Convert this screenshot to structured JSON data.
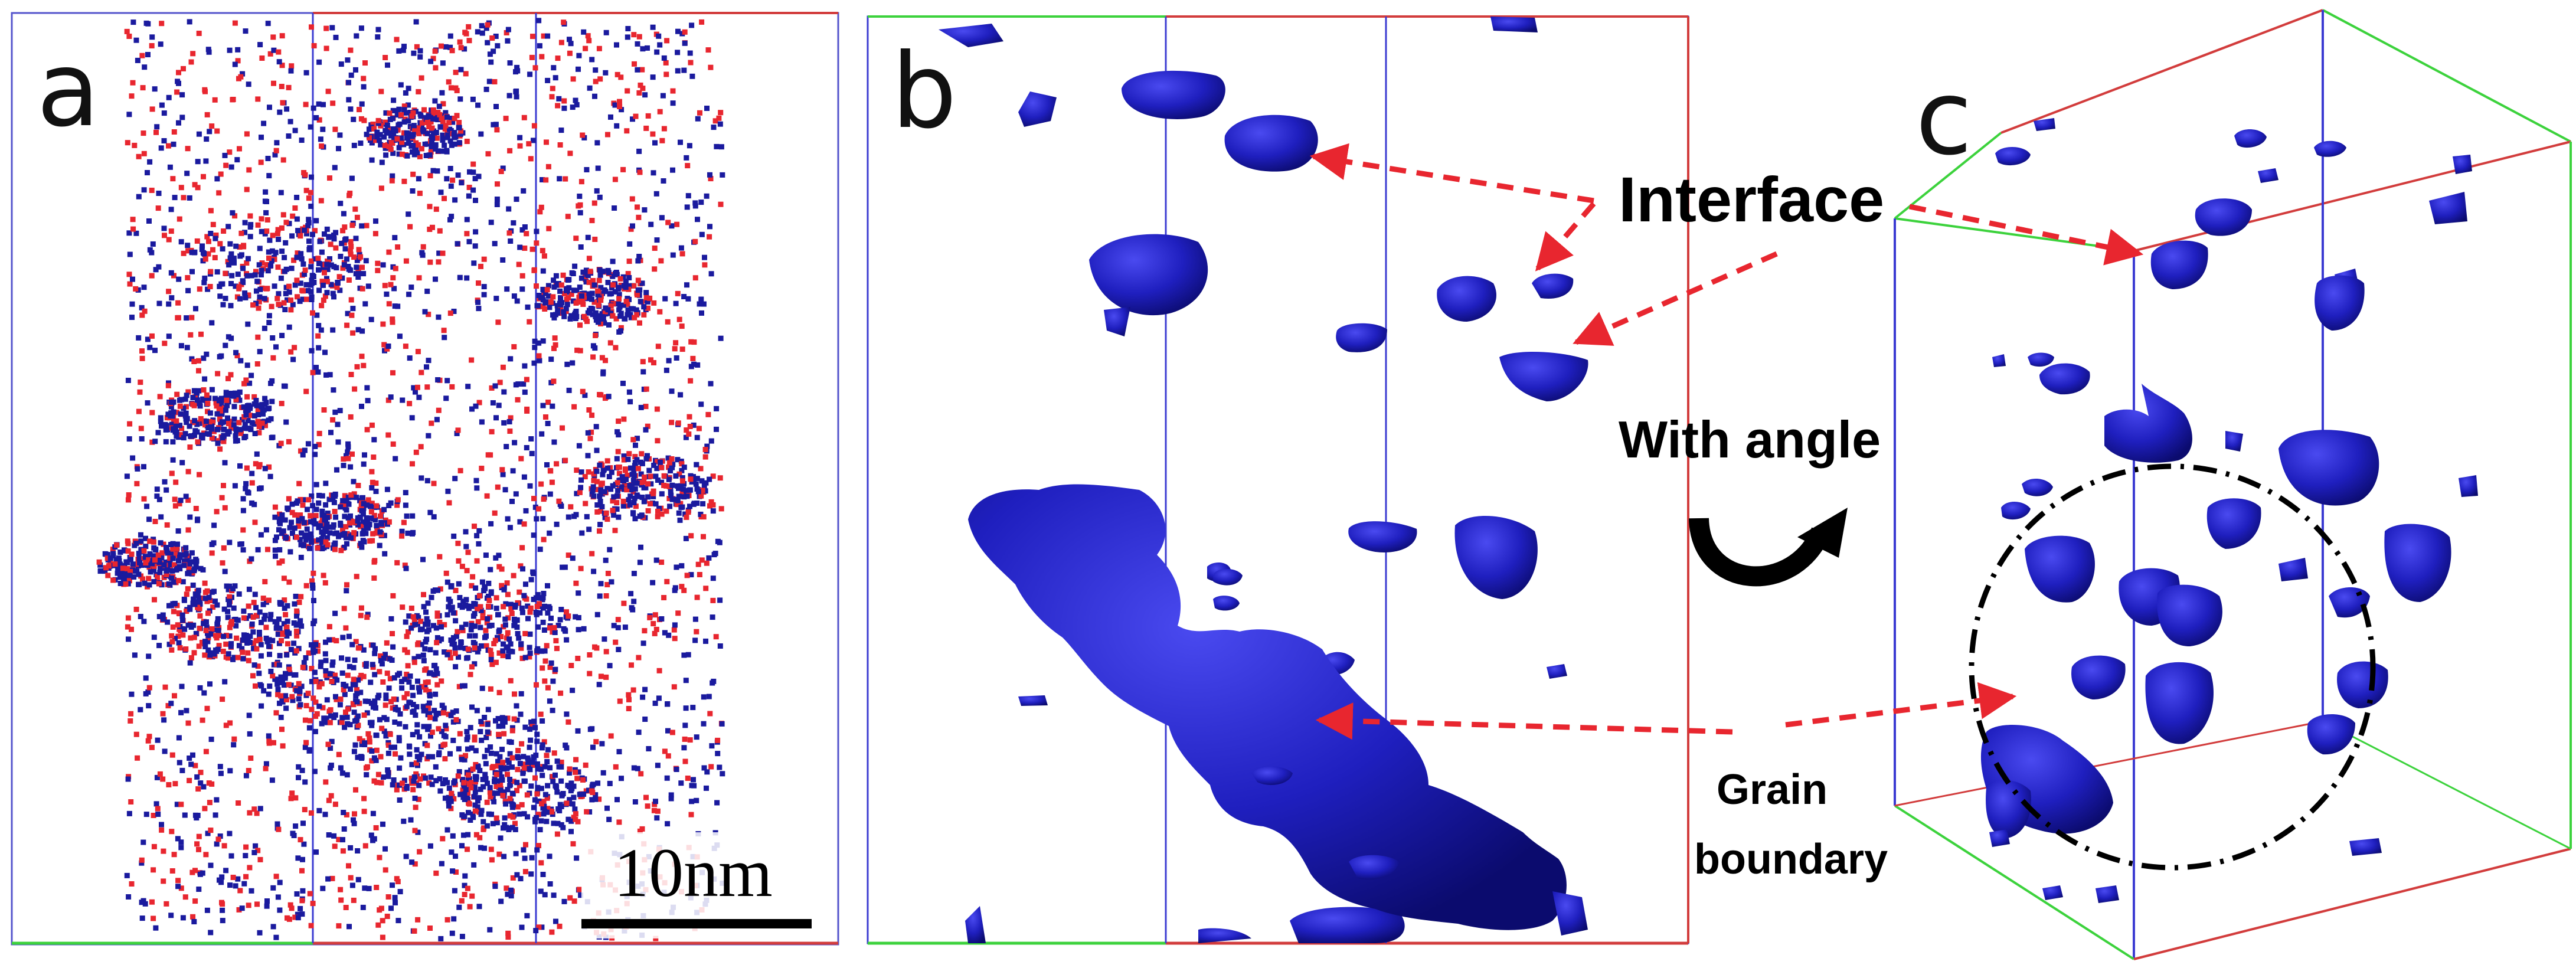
{
  "figure": {
    "panels": [
      {
        "letter": "a",
        "scale_bar_label": "10nm"
      },
      {
        "letter": "b"
      },
      {
        "letter": "c"
      }
    ],
    "annotations": {
      "interface": "Interface",
      "with_angle": "With angle",
      "grain_boundary_line1": "Grain",
      "grain_boundary_line2": "boundary"
    },
    "colors": {
      "atom_blue": "#1a1a9e",
      "atom_red": "#e8262f",
      "iso_surface": "#1f1fbf",
      "arrow_red": "#e8262f",
      "box_green": "#3cd23c",
      "box_red": "#d23c3c",
      "box_blue": "#3c3cd2",
      "circle_black": "#000000"
    }
  }
}
